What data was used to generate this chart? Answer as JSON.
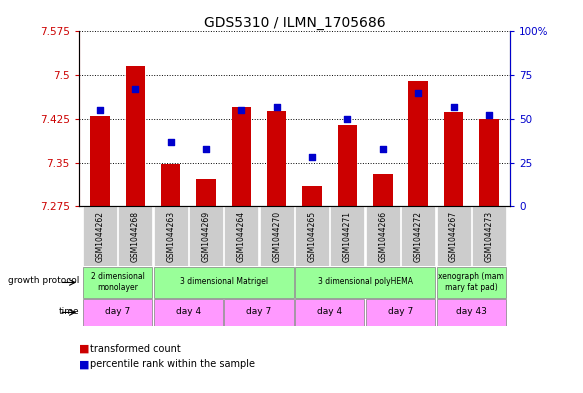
{
  "title": "GDS5310 / ILMN_1705686",
  "samples": [
    "GSM1044262",
    "GSM1044268",
    "GSM1044263",
    "GSM1044269",
    "GSM1044264",
    "GSM1044270",
    "GSM1044265",
    "GSM1044271",
    "GSM1044266",
    "GSM1044272",
    "GSM1044267",
    "GSM1044273"
  ],
  "bar_tops": [
    7.43,
    7.515,
    7.348,
    7.322,
    7.445,
    7.438,
    7.31,
    7.415,
    7.33,
    7.49,
    7.437,
    7.425
  ],
  "dot_pct": [
    55,
    67,
    37,
    33,
    55,
    57,
    28,
    50,
    33,
    65,
    57,
    52
  ],
  "ylim_left": [
    7.275,
    7.575
  ],
  "ylim_right": [
    0,
    100
  ],
  "yticks_left": [
    7.275,
    7.35,
    7.425,
    7.5,
    7.575
  ],
  "yticks_right": [
    0,
    25,
    50,
    75,
    100
  ],
  "bar_base": 7.275,
  "bar_color": "#cc0000",
  "dot_color": "#0000cc",
  "bg_color": "#ffffff",
  "left_axis_color": "#cc0000",
  "right_axis_color": "#0000cc",
  "title_fontsize": 10,
  "tick_fontsize": 7.5,
  "bar_width": 0.55,
  "growth_protocol_groups": [
    {
      "label": "2 dimensional\nmonolayer",
      "start": 0,
      "end": 2
    },
    {
      "label": "3 dimensional Matrigel",
      "start": 2,
      "end": 6
    },
    {
      "label": "3 dimensional polyHEMA",
      "start": 6,
      "end": 10
    },
    {
      "label": "xenograph (mam\nmary fat pad)",
      "start": 10,
      "end": 12
    }
  ],
  "time_groups": [
    {
      "label": "day 7",
      "start": 0,
      "end": 2
    },
    {
      "label": "day 4",
      "start": 2,
      "end": 4
    },
    {
      "label": "day 7",
      "start": 4,
      "end": 6
    },
    {
      "label": "day 4",
      "start": 6,
      "end": 8
    },
    {
      "label": "day 7",
      "start": 8,
      "end": 10
    },
    {
      "label": "day 43",
      "start": 10,
      "end": 12
    }
  ],
  "gp_color": "#99ff99",
  "time_color": "#ff99ff",
  "sample_box_color": "#cccccc",
  "legend_bar_label": "transformed count",
  "legend_dot_label": "percentile rank within the sample"
}
